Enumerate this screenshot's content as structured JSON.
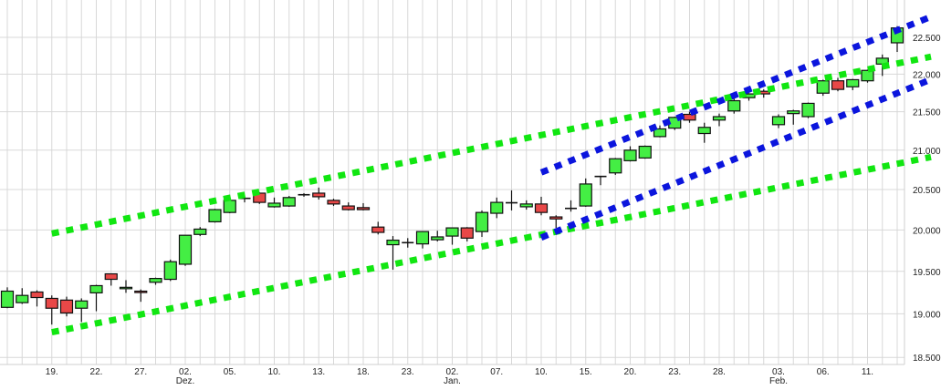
{
  "chart_data": {
    "type": "candlestick",
    "title": "",
    "xlabel": "",
    "ylabel": "",
    "y_scale": "log",
    "ylim": [
      18420,
      23020
    ],
    "grid": true,
    "y_axis_position": "right",
    "colors": {
      "up": "#44ee44",
      "down": "#e84848",
      "grid": "#d8d8d8",
      "trend_green": "#11e611",
      "trend_blue": "#0b15dd"
    },
    "y_ticks": [
      {
        "value": 18500,
        "label": "18.500"
      },
      {
        "value": 19000,
        "label": "19.000"
      },
      {
        "value": 19500,
        "label": "19.500"
      },
      {
        "value": 20000,
        "label": "20.000"
      },
      {
        "value": 20500,
        "label": "20.500"
      },
      {
        "value": 21000,
        "label": "21.000"
      },
      {
        "value": 21500,
        "label": "21.500"
      },
      {
        "value": 22000,
        "label": "22.000"
      },
      {
        "value": 22500,
        "label": "22.500"
      }
    ],
    "x_ticks": [
      {
        "date": "11-19",
        "label": "19.",
        "sublabel": ""
      },
      {
        "date": "11-22",
        "label": "22.",
        "sublabel": ""
      },
      {
        "date": "11-27",
        "label": "27.",
        "sublabel": ""
      },
      {
        "date": "12-02",
        "label": "02.",
        "sublabel": "Dez."
      },
      {
        "date": "12-05",
        "label": "05.",
        "sublabel": ""
      },
      {
        "date": "12-10",
        "label": "10.",
        "sublabel": ""
      },
      {
        "date": "12-13",
        "label": "13.",
        "sublabel": ""
      },
      {
        "date": "12-18",
        "label": "18.",
        "sublabel": ""
      },
      {
        "date": "12-23",
        "label": "23.",
        "sublabel": ""
      },
      {
        "date": "01-02",
        "label": "02.",
        "sublabel": "Jan."
      },
      {
        "date": "01-07",
        "label": "07.",
        "sublabel": ""
      },
      {
        "date": "01-10",
        "label": "10.",
        "sublabel": ""
      },
      {
        "date": "01-15",
        "label": "15.",
        "sublabel": ""
      },
      {
        "date": "01-20",
        "label": "20.",
        "sublabel": ""
      },
      {
        "date": "01-23",
        "label": "23.",
        "sublabel": ""
      },
      {
        "date": "01-28",
        "label": "28.",
        "sublabel": ""
      },
      {
        "date": "02-03",
        "label": "03.",
        "sublabel": "Feb."
      },
      {
        "date": "02-06",
        "label": "06.",
        "sublabel": ""
      },
      {
        "date": "02-11",
        "label": "11.",
        "sublabel": ""
      }
    ],
    "candles_columns": [
      "date",
      "open",
      "high",
      "low",
      "close"
    ],
    "candles": [
      [
        "11-14",
        19075,
        19310,
        19065,
        19265
      ],
      [
        "11-15",
        19130,
        19300,
        19115,
        19215
      ],
      [
        "11-18",
        19255,
        19275,
        19085,
        19190
      ],
      [
        "11-19",
        19180,
        19215,
        18875,
        19065
      ],
      [
        "11-20",
        19160,
        19200,
        18970,
        19010
      ],
      [
        "11-21",
        19065,
        19180,
        18905,
        19150
      ],
      [
        "11-22",
        19245,
        19340,
        19030,
        19330
      ],
      [
        "11-25",
        19470,
        19470,
        19330,
        19405
      ],
      [
        "11-26",
        19300,
        19395,
        19245,
        19310
      ],
      [
        "11-27",
        19265,
        19285,
        19140,
        19255
      ],
      [
        "11-28",
        19370,
        19425,
        19340,
        19415
      ],
      [
        "11-29",
        19405,
        19640,
        19385,
        19615
      ],
      [
        "12-02",
        19585,
        19935,
        19565,
        19935
      ],
      [
        "12-03",
        19945,
        20035,
        19925,
        20010
      ],
      [
        "12-04",
        20100,
        20260,
        20090,
        20250
      ],
      [
        "12-05",
        20215,
        20365,
        20205,
        20365
      ],
      [
        "12-06",
        20385,
        20410,
        20340,
        20390
      ],
      [
        "12-09",
        20455,
        20465,
        20320,
        20340
      ],
      [
        "12-10",
        20285,
        20400,
        20275,
        20330
      ],
      [
        "12-11",
        20295,
        20420,
        20285,
        20400
      ],
      [
        "12-12",
        20430,
        20455,
        20410,
        20435
      ],
      [
        "12-13",
        20455,
        20525,
        20375,
        20410
      ],
      [
        "12-16",
        20365,
        20385,
        20295,
        20320
      ],
      [
        "12-17",
        20295,
        20340,
        20240,
        20250
      ],
      [
        "12-18",
        20275,
        20330,
        20240,
        20250
      ],
      [
        "12-19",
        20035,
        20100,
        19945,
        19970
      ],
      [
        "12-20",
        19820,
        19925,
        19520,
        19875
      ],
      [
        "12-23",
        19840,
        19900,
        19785,
        19845
      ],
      [
        "12-27",
        19830,
        19980,
        19775,
        19980
      ],
      [
        "12-30",
        19880,
        19990,
        19860,
        19915
      ],
      [
        "01-02",
        19925,
        20025,
        19820,
        20025
      ],
      [
        "01-03",
        20025,
        20035,
        19860,
        19900
      ],
      [
        "01-06",
        19980,
        20240,
        19915,
        20215
      ],
      [
        "01-07",
        20205,
        20400,
        20145,
        20340
      ],
      [
        "01-08",
        20330,
        20490,
        20240,
        20335
      ],
      [
        "01-09",
        20285,
        20365,
        20250,
        20320
      ],
      [
        "01-10",
        20320,
        20410,
        20180,
        20215
      ],
      [
        "01-13",
        20160,
        20180,
        20025,
        20135
      ],
      [
        "01-14",
        20260,
        20365,
        20225,
        20265
      ],
      [
        "01-15",
        20295,
        20640,
        20285,
        20570
      ],
      [
        "01-16",
        20660,
        20670,
        20555,
        20665
      ],
      [
        "01-17",
        20710,
        20900,
        20685,
        20890
      ],
      [
        "01-20",
        20865,
        21050,
        20855,
        21000
      ],
      [
        "01-21",
        20900,
        21060,
        20890,
        21050
      ],
      [
        "01-22",
        21175,
        21320,
        21165,
        21275
      ],
      [
        "01-23",
        21285,
        21435,
        21260,
        21425
      ],
      [
        "01-24",
        21465,
        21500,
        21355,
        21390
      ],
      [
        "01-27",
        21215,
        21355,
        21095,
        21295
      ],
      [
        "01-28",
        21390,
        21475,
        21310,
        21435
      ],
      [
        "01-29",
        21510,
        21685,
        21475,
        21645
      ],
      [
        "01-30",
        21685,
        21745,
        21645,
        21735
      ],
      [
        "01-31",
        21770,
        21795,
        21685,
        21735
      ],
      [
        "02-03",
        21330,
        21465,
        21285,
        21435
      ],
      [
        "02-04",
        21475,
        21525,
        21330,
        21510
      ],
      [
        "02-05",
        21435,
        21620,
        21415,
        21610
      ],
      [
        "02-06",
        21745,
        21925,
        21710,
        21910
      ],
      [
        "02-07",
        21910,
        21950,
        21770,
        21795
      ],
      [
        "02-10",
        21830,
        21935,
        21785,
        21925
      ],
      [
        "02-11",
        21910,
        22060,
        21885,
        22050
      ],
      [
        "02-12",
        22135,
        22265,
        21975,
        22215
      ],
      [
        "02-13",
        22425,
        22655,
        22300,
        22630
      ]
    ],
    "trendlines": [
      {
        "color": "green",
        "from": {
          "date": "11-19",
          "price": 19956
        },
        "to": {
          "date": "02-13",
          "price": 22143
        },
        "extend_right": true
      },
      {
        "color": "green",
        "from": {
          "date": "11-19",
          "price": 18787
        },
        "to": {
          "date": "02-13",
          "price": 20826
        },
        "extend_right": true
      },
      {
        "color": "blue",
        "from": {
          "date": "01-10",
          "price": 20715
        },
        "to": {
          "date": "02-13",
          "price": 22598
        },
        "extend_right": true
      },
      {
        "color": "blue",
        "from": {
          "date": "01-10",
          "price": 19907
        },
        "to": {
          "date": "02-13",
          "price": 21745
        },
        "extend_right": true
      }
    ]
  }
}
